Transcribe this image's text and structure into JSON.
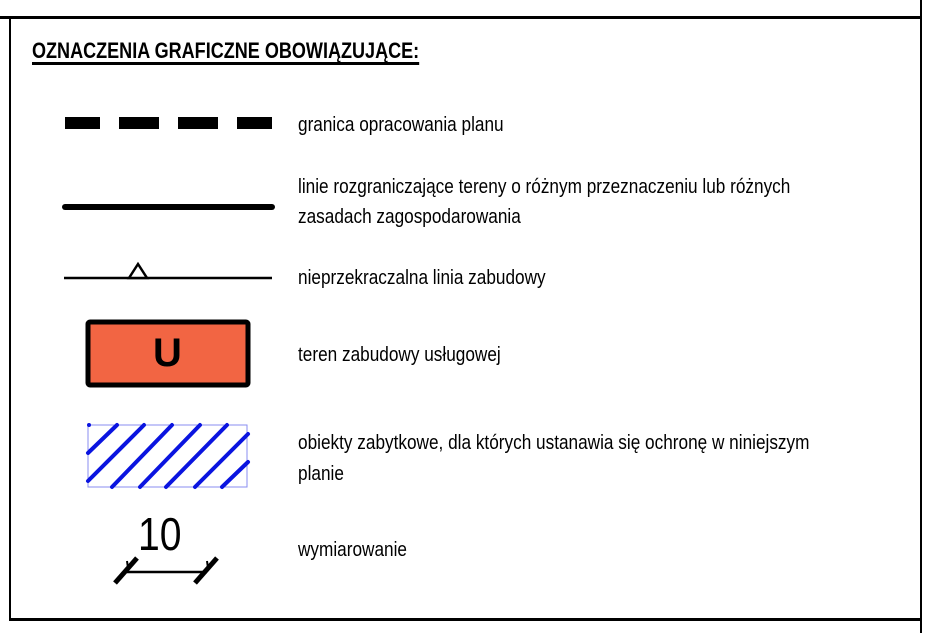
{
  "legend": {
    "title": "OZNACZENIA GRAFICZNE OBOWIĄZUJĄCE:",
    "items": [
      {
        "symbol": "dashed-line",
        "label": "granica opracowania planu"
      },
      {
        "symbol": "solid-line",
        "label_line1": "linie rozgraniczające tereny o różnym przeznaczeniu lub różnych",
        "label_line2": "zasadach zagospodarowania"
      },
      {
        "symbol": "line-with-triangle",
        "label": "nieprzekraczalna linia zabudowy"
      },
      {
        "symbol": "filled-box",
        "symbol_text": "U",
        "fill_color": "#f26543",
        "label": "teren zabudowy usługowej"
      },
      {
        "symbol": "hatched-box",
        "hatch_color": "#0a14e0",
        "label_line1": "obiekty zabytkowe, dla których ustanawia się ochronę w niniejszym",
        "label_line2": "planie"
      },
      {
        "symbol": "dimension",
        "symbol_text": "10",
        "label": "wymiarowanie"
      }
    ]
  }
}
